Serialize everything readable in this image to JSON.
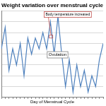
{
  "chart_data": {
    "type": "line",
    "title": "Weight variation over menstrual cycle",
    "x_label": "Day of Menstrual Cycle",
    "annotations": [
      "Body temperature increased",
      "Ovulation"
    ],
    "x": [
      1,
      2,
      3,
      4,
      5,
      6,
      7,
      8,
      9,
      10,
      11,
      12,
      13,
      14,
      15,
      16,
      17,
      18,
      19,
      20,
      21,
      22,
      23,
      24,
      25,
      26,
      27,
      28
    ],
    "values": [
      4.5,
      6.5,
      2.5,
      4.5,
      3,
      5,
      2,
      5.5,
      4,
      5.5,
      4.5,
      6,
      4.5,
      7,
      4,
      7.5,
      4,
      1,
      3.5,
      0.5,
      3,
      1,
      2.5,
      0.5,
      2,
      1,
      3.5,
      5
    ],
    "color": "#4f81bd",
    "xlim": [
      1,
      28
    ],
    "xticks": [
      1,
      2,
      3,
      4,
      5,
      6,
      7,
      8,
      9,
      10,
      11,
      12,
      13,
      14,
      15,
      16,
      17,
      18,
      19,
      20,
      21,
      22,
      23,
      24,
      25,
      26,
      27,
      28
    ],
    "ylim": [
      0,
      8
    ],
    "yticks": [
      0,
      1,
      2,
      3,
      4,
      5,
      6,
      7,
      8
    ],
    "grid": true,
    "tick_labels": false
  }
}
